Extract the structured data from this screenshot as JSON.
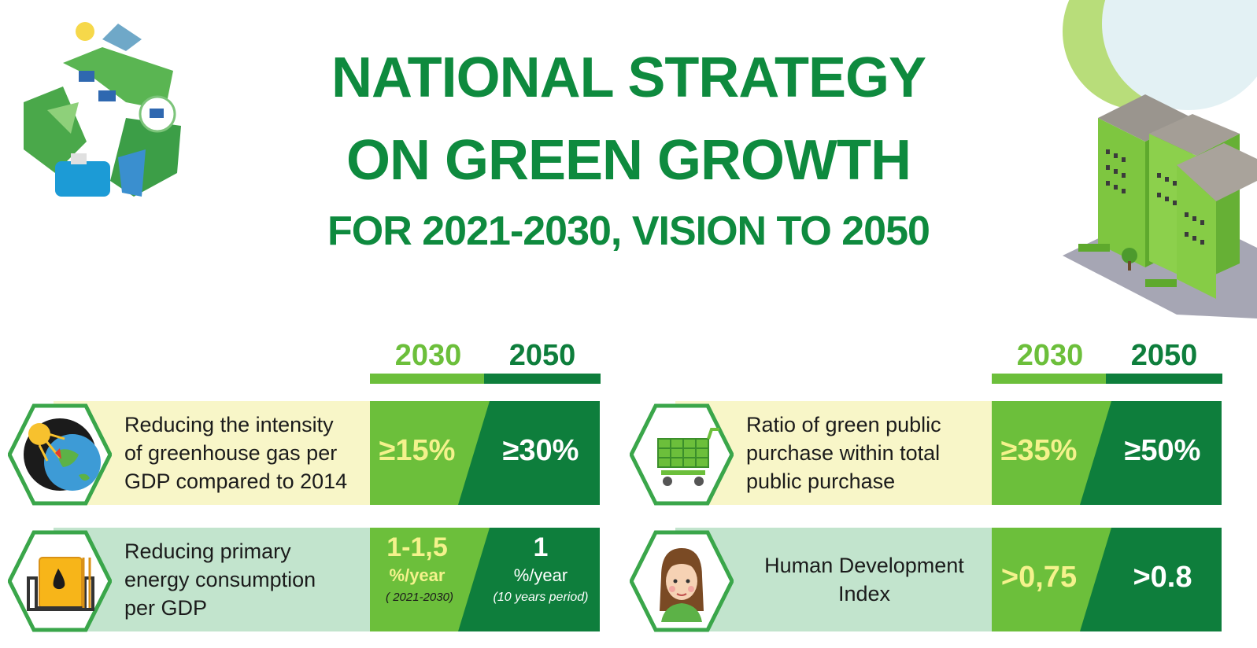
{
  "title": {
    "line1": "NATIONAL STRATEGY",
    "line2": "ON GREEN GROWTH",
    "line3": "FOR 2021-2030, VISION TO 2050"
  },
  "columns": [
    "2030",
    "2050"
  ],
  "indicators": [
    {
      "label_lines": [
        "Reducing the intensity",
        "of greenhouse gas per",
        "GDP compared to 2014"
      ],
      "value_2030": "≥15%",
      "value_2050": "≥30%",
      "icon": "earth-sun-icon"
    },
    {
      "label_lines": [
        "Ratio of green public",
        "purchase within total",
        "public purchase"
      ],
      "value_2030": "≥35%",
      "value_2050": "≥50%",
      "icon": "shopping-cart-icon"
    },
    {
      "label_lines": [
        "Reducing primary",
        "energy consumption",
        "per GDP"
      ],
      "value_2030": "1-1,5",
      "unit_2030": "%/year",
      "note_2030": "( 2021-2030)",
      "value_2050": "1",
      "unit_2050": "%/year",
      "note_2050": "(10 years period)",
      "icon": "oil-tank-icon"
    },
    {
      "label_lines": [
        "Human Development",
        "Index"
      ],
      "value_2030": ">0,75",
      "value_2050": ">0.8",
      "icon": "woman-avatar-icon"
    }
  ],
  "colors": {
    "title_green": "#0e8a3e",
    "light_green": "#6cbf3b",
    "dark_green": "#0e7e3c",
    "cream_band": "#f8f6c8",
    "mint_band": "#c2e4cd",
    "value_yellow": "#f4f28c"
  }
}
